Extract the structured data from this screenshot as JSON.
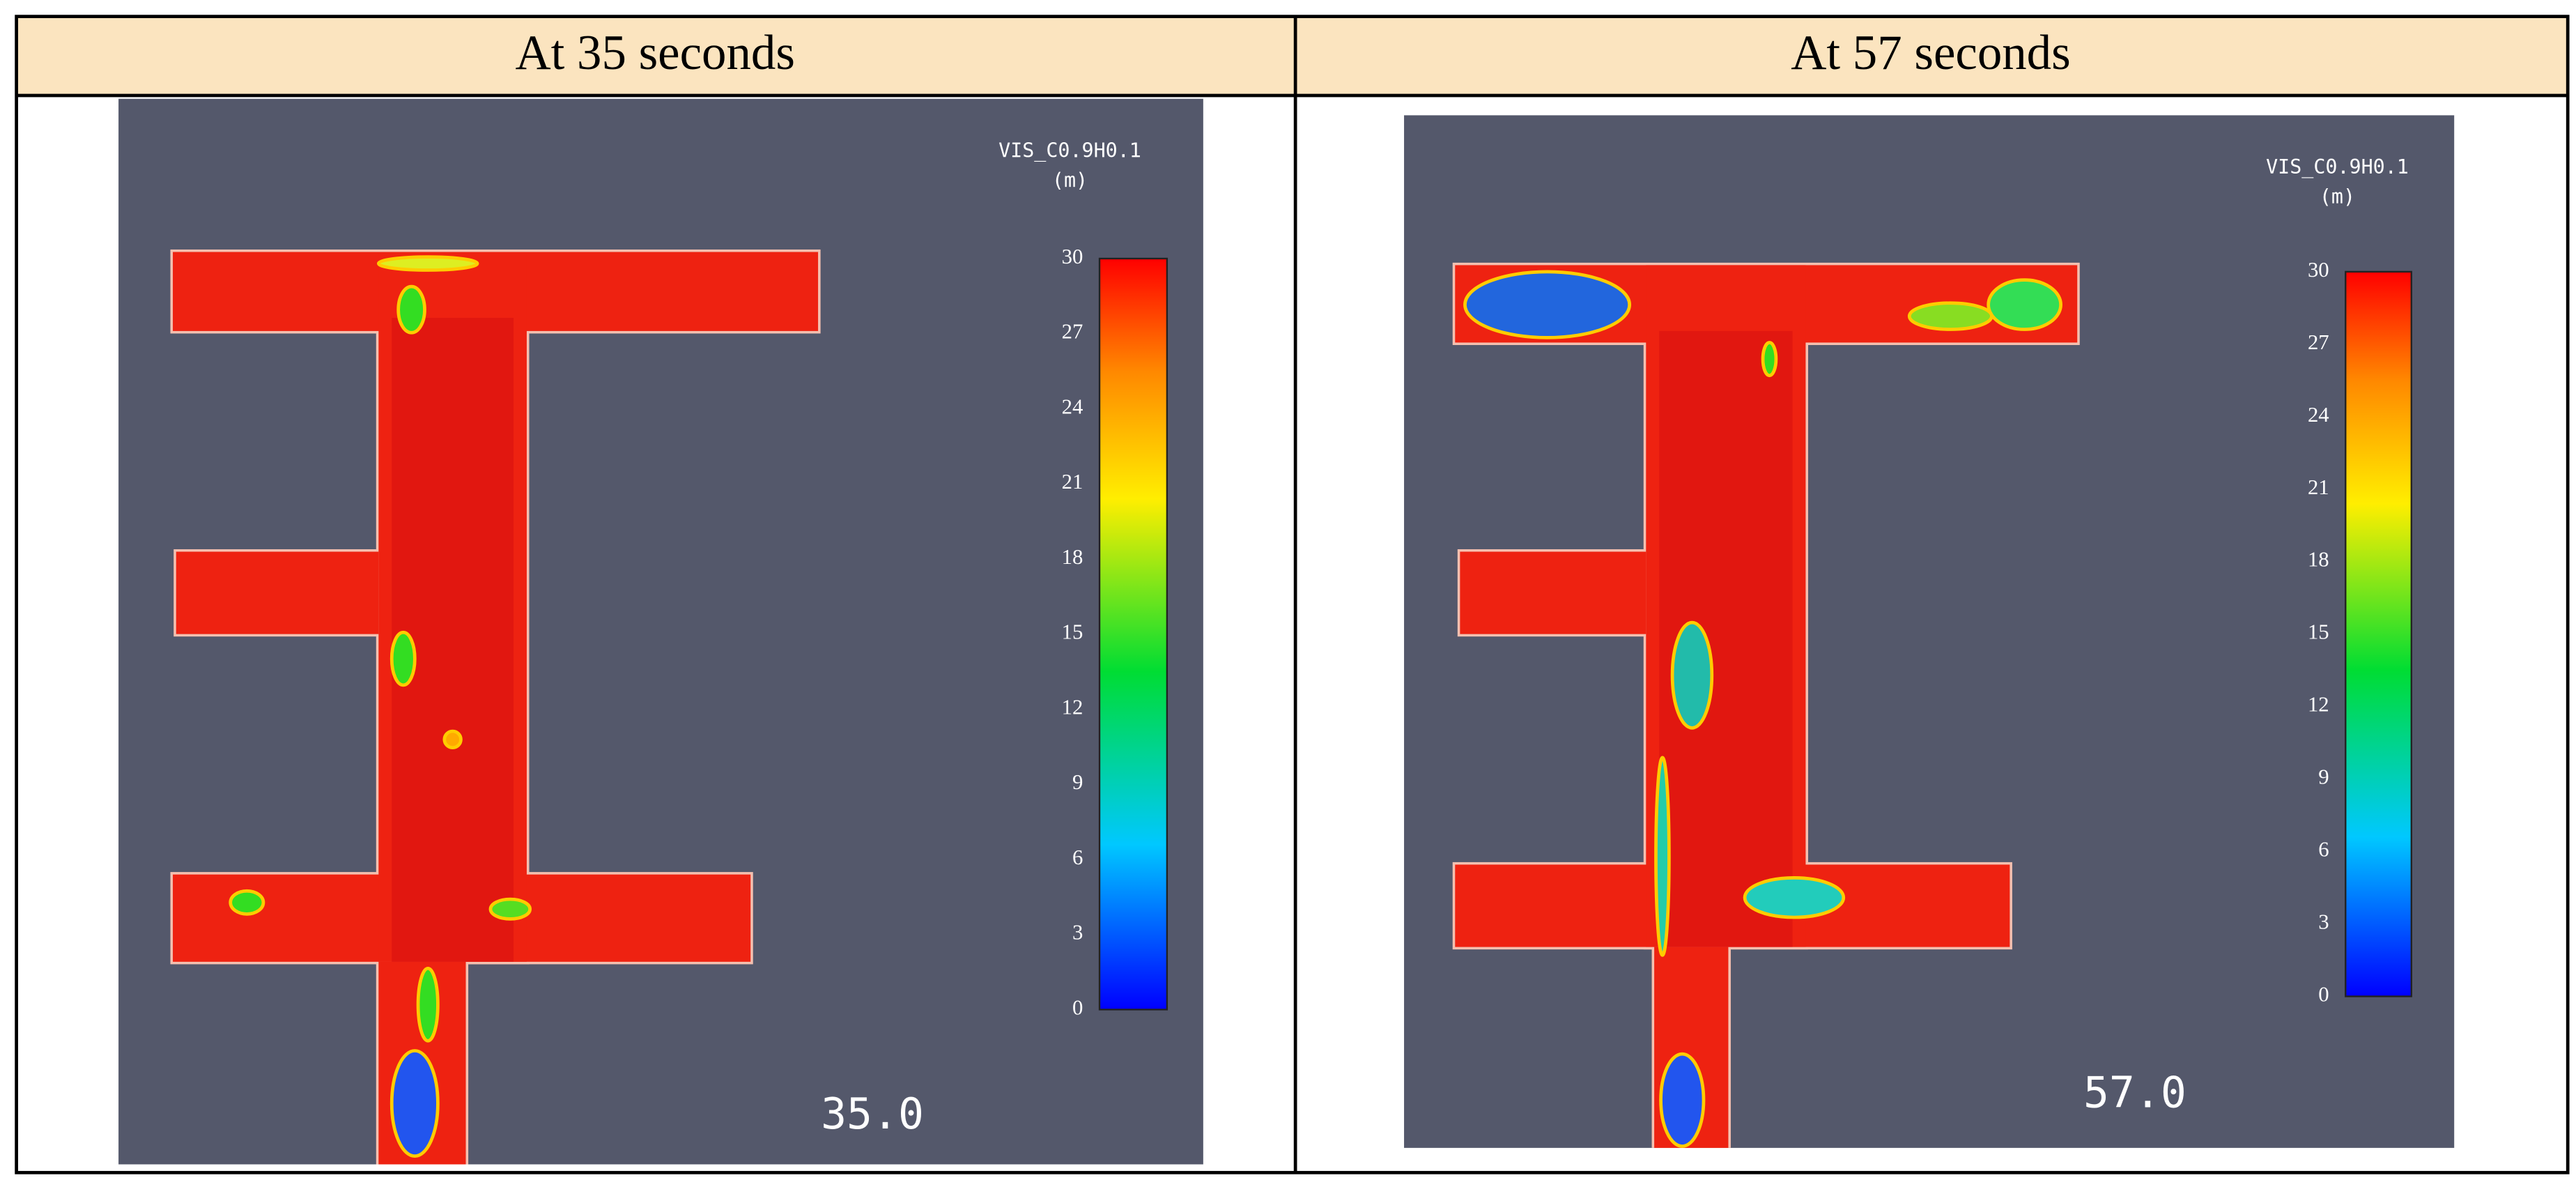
{
  "table": {
    "headers": [
      "At 35 seconds",
      "At 57 seconds"
    ],
    "panels": [
      {
        "legend_title": "VIS_C0.9H0.1",
        "legend_unit": "(m)",
        "colorbar_ticks": [
          30,
          27,
          24,
          21,
          18,
          15,
          12,
          9,
          6,
          3,
          0
        ],
        "time_label": "35.0"
      },
      {
        "legend_title": "VIS_C0.9H0.1",
        "legend_unit": "(m)",
        "colorbar_ticks": [
          30,
          27,
          24,
          21,
          18,
          15,
          12,
          9,
          6,
          3,
          0
        ],
        "time_label": "57.0"
      }
    ]
  }
}
